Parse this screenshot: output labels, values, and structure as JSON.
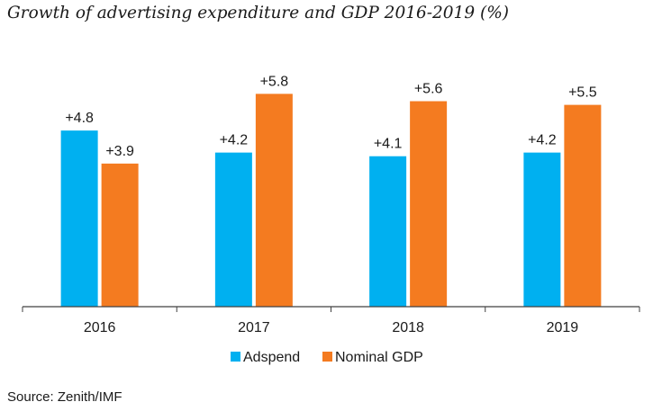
{
  "title": "Growth of advertising expenditure and GDP 2016-2019 (%)",
  "source": "Source: Zenith/IMF",
  "colors": {
    "adspend": "#00B0F0",
    "nominal_gdp": "#F47B20",
    "axis": "#404040",
    "text": "#1a1a1a"
  },
  "chart_data": {
    "type": "bar",
    "title": "Growth of advertising expenditure and GDP 2016-2019 (%)",
    "categories": [
      "2016",
      "2017",
      "2018",
      "2019"
    ],
    "series": [
      {
        "name": "Adspend",
        "values": [
          4.8,
          4.2,
          4.1,
          4.2
        ],
        "labels": [
          "+4.8",
          "+4.2",
          "+4.1",
          "+4.2"
        ]
      },
      {
        "name": "Nominal GDP",
        "values": [
          3.9,
          5.8,
          5.6,
          5.5
        ],
        "labels": [
          "+3.9",
          "+5.8",
          "+5.6",
          "+5.5"
        ]
      }
    ],
    "xlabel": "",
    "ylabel": "",
    "ylim": [
      0,
      6
    ],
    "grid": false,
    "legend": "bottom-center"
  }
}
